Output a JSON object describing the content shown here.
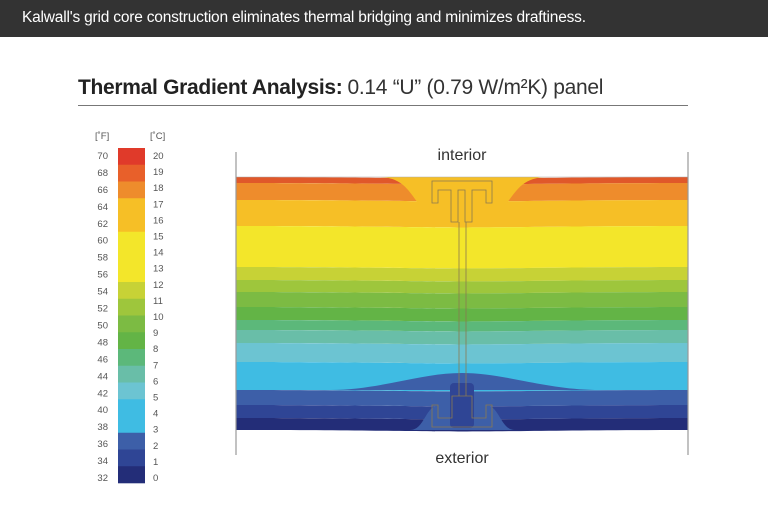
{
  "header": {
    "caption": "Kalwall's grid core construction eliminates thermal bridging and minimizes draftiness."
  },
  "title": {
    "bold": "Thermal Gradient Analysis:",
    "light": "0.14 “U” (0.79 W/m²K) panel"
  },
  "legend": {
    "f_unit": "[˚F]",
    "c_unit": "[˚C]",
    "fahrenheit": [
      "70",
      "68",
      "66",
      "64",
      "62",
      "60",
      "58",
      "56",
      "54",
      "52",
      "50",
      "48",
      "46",
      "44",
      "42",
      "40",
      "38",
      "36",
      "34",
      "32"
    ],
    "celsius": [
      "20",
      "19",
      "18",
      "17",
      "16",
      "15",
      "14",
      "13",
      "12",
      "11",
      "10",
      "9",
      "8",
      "7",
      "6",
      "5",
      "4",
      "3",
      "2",
      "1",
      "0"
    ],
    "swatches": [
      {
        "color": "#e03a2a",
        "span": 1
      },
      {
        "color": "#e8602a",
        "span": 1
      },
      {
        "color": "#ee8c2c",
        "span": 1
      },
      {
        "color": "#f6bf26",
        "span": 2
      },
      {
        "color": "#f3e62a",
        "span": 3
      },
      {
        "color": "#c7d236",
        "span": 1
      },
      {
        "color": "#9ec63c",
        "span": 1
      },
      {
        "color": "#7cbb43",
        "span": 1
      },
      {
        "color": "#63b446",
        "span": 1
      },
      {
        "color": "#5cb87a",
        "span": 1
      },
      {
        "color": "#69bea8",
        "span": 1
      },
      {
        "color": "#6cc4d2",
        "span": 1
      },
      {
        "color": "#3fbce3",
        "span": 2
      },
      {
        "color": "#3d5fa8",
        "span": 1
      },
      {
        "color": "#2f4595",
        "span": 1
      },
      {
        "color": "#232d78",
        "span": 1
      }
    ]
  },
  "diagram": {
    "interior_label": "interior",
    "exterior_label": "exterior",
    "bands": [
      "#e0582a",
      "#ee8c2c",
      "#f6bf26",
      "#f3e62a",
      "#c7d236",
      "#9ec63c",
      "#7cbb43",
      "#63b446",
      "#5cb87a",
      "#69bea8",
      "#6cc4d2",
      "#3fbce3",
      "#3d5fa8",
      "#2f4595",
      "#232d78"
    ]
  }
}
